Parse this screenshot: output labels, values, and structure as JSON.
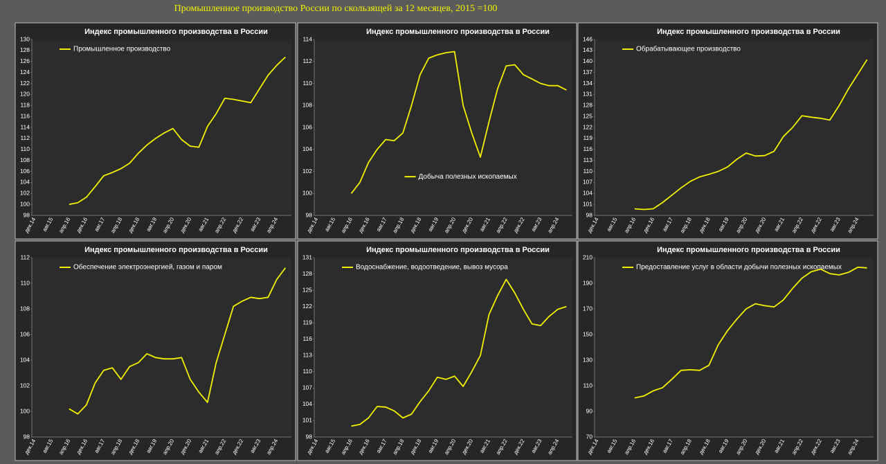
{
  "title": "Промышленное производство России по скользящей за 12 месяцев, 2015 =100",
  "chart_data": [
    {
      "type": "line",
      "title": "Индекс промышленного производства в России",
      "categories": [
        "дек.14",
        null,
        "авг.15",
        null,
        "апр.16",
        null,
        "дек.16",
        null,
        "авг.17",
        null,
        "апр.18",
        null,
        "дек.18",
        null,
        "авг.19",
        null,
        "апр.20",
        null,
        "дек.20",
        null,
        "авг.21",
        null,
        "апр.22",
        null,
        "дек.22",
        null,
        "авг.23",
        null,
        "апр.24",
        null
      ],
      "series": [
        {
          "name": "Промышленное производство",
          "color": "#f2f200",
          "values": [
            null,
            null,
            null,
            null,
            100,
            100.3,
            101.3,
            103.2,
            105.2,
            105.8,
            106.5,
            107.5,
            109.3,
            110.8,
            112,
            113,
            113.8,
            111.8,
            110.6,
            110.4,
            114.2,
            116.5,
            119.3,
            119.1,
            118.8,
            118.5,
            121,
            123.5,
            125.3,
            126.8
          ]
        }
      ],
      "ylim": [
        98,
        130
      ],
      "yticks": [
        98,
        100,
        102,
        104,
        106,
        108,
        110,
        112,
        114,
        116,
        118,
        120,
        122,
        124,
        126,
        128,
        130
      ],
      "grid": false,
      "legend": "upper left"
    },
    {
      "type": "line",
      "title": "Индекс промышленного производства в России",
      "categories": [
        "дек.14",
        null,
        "авг.15",
        null,
        "апр.16",
        null,
        "дек.16",
        null,
        "авг.17",
        null,
        "апр.18",
        null,
        "дек.18",
        null,
        "авг.19",
        null,
        "апр.20",
        null,
        "дек.20",
        null,
        "авг.21",
        null,
        "апр.22",
        null,
        "дек.22",
        null,
        "авг.23",
        null,
        "апр.24",
        null
      ],
      "series": [
        {
          "name": "Добыча полезных ископаемых",
          "color": "#f2f200",
          "values": [
            null,
            null,
            null,
            null,
            100,
            101,
            102.8,
            104,
            104.9,
            104.8,
            105.5,
            108,
            110.8,
            112.3,
            112.6,
            112.8,
            112.9,
            108,
            105.5,
            103.3,
            106.5,
            109.5,
            111.6,
            111.7,
            110.8,
            110.4,
            110,
            109.8,
            109.8,
            109.4
          ]
        }
      ],
      "ylim": [
        98,
        114
      ],
      "yticks": [
        98,
        100,
        102,
        104,
        106,
        108,
        110,
        112,
        114
      ],
      "grid": false,
      "legend": "center"
    },
    {
      "type": "line",
      "title": "Индекс промышленного производства в России",
      "categories": [
        "дек.14",
        null,
        "авг.15",
        null,
        "апр.16",
        null,
        "дек.16",
        null,
        "авг.17",
        null,
        "апр.18",
        null,
        "дек.18",
        null,
        "авг.19",
        null,
        "апр.20",
        null,
        "дек.20",
        null,
        "авг.21",
        null,
        "апр.22",
        null,
        "дек.22",
        null,
        "авг.23",
        null,
        "апр.24",
        null
      ],
      "series": [
        {
          "name": "Обрабатывающее производство",
          "color": "#f2f200",
          "values": [
            null,
            null,
            null,
            null,
            99.8,
            99.6,
            99.8,
            101.5,
            103.5,
            105.5,
            107.3,
            108.5,
            109.2,
            110,
            111.2,
            113.3,
            115,
            114.2,
            114.3,
            115.5,
            119.5,
            122,
            125.2,
            124.8,
            124.5,
            124,
            128,
            132.5,
            136.5,
            140.5
          ]
        }
      ],
      "ylim": [
        98,
        146
      ],
      "yticks": [
        98,
        101,
        104,
        107,
        110,
        113,
        116,
        119,
        122,
        125,
        128,
        131,
        134,
        137,
        140,
        143,
        146
      ],
      "grid": false,
      "legend": "upper left"
    },
    {
      "type": "line",
      "title": "Индекс промышленного производства в России",
      "categories": [
        "дек.14",
        null,
        "авг.15",
        null,
        "апр.16",
        null,
        "дек.16",
        null,
        "авг.17",
        null,
        "апр.18",
        null,
        "дек.18",
        null,
        "авг.19",
        null,
        "апр.20",
        null,
        "дек.20",
        null,
        "авг.21",
        null,
        "апр.22",
        null,
        "дек.22",
        null,
        "авг.23",
        null,
        "апр.24",
        null
      ],
      "series": [
        {
          "name": "Обеспечение электроэнергией, газом и паром",
          "color": "#f2f200",
          "values": [
            null,
            null,
            null,
            null,
            100.2,
            99.8,
            100.5,
            102.2,
            103.2,
            103.4,
            102.5,
            103.5,
            103.8,
            104.5,
            104.2,
            104.1,
            104.1,
            104.2,
            102.5,
            101.5,
            100.7,
            103.8,
            106,
            108.2,
            108.6,
            108.9,
            108.8,
            108.9,
            110.3,
            111.2
          ]
        }
      ],
      "ylim": [
        98,
        112
      ],
      "yticks": [
        98,
        100,
        102,
        104,
        106,
        108,
        110,
        112
      ],
      "grid": false,
      "legend": "upper left"
    },
    {
      "type": "line",
      "title": "Индекс промышленного производства в России",
      "categories": [
        "дек.14",
        null,
        "авг.15",
        null,
        "апр.16",
        null,
        "дек.16",
        null,
        "авг.17",
        null,
        "апр.18",
        null,
        "дек.18",
        null,
        "авг.19",
        null,
        "апр.20",
        null,
        "дек.20",
        null,
        "авг.21",
        null,
        "апр.22",
        null,
        "дек.22",
        null,
        "авг.23",
        null,
        "апр.24",
        null
      ],
      "series": [
        {
          "name": "Водоснабжение, водоотведение, вывоз мусора",
          "color": "#f2f200",
          "values": [
            null,
            null,
            null,
            null,
            100,
            100.3,
            101.5,
            103.6,
            103.5,
            102.8,
            101.5,
            102.2,
            104.5,
            106.5,
            109,
            108.6,
            109.2,
            107.3,
            110,
            113,
            120.5,
            124,
            127,
            124.5,
            121.5,
            118.8,
            118.5,
            120.2,
            121.5,
            122
          ]
        }
      ],
      "ylim": [
        98,
        131
      ],
      "yticks": [
        98,
        101,
        104,
        107,
        110,
        113,
        116,
        119,
        122,
        125,
        128,
        131
      ],
      "grid": false,
      "legend": "upper left"
    },
    {
      "type": "line",
      "title": "Индекс промышленного производства в России",
      "categories": [
        "дек.14",
        null,
        "авг.15",
        null,
        "апр.16",
        null,
        "дек.16",
        null,
        "авг.17",
        null,
        "апр.18",
        null,
        "дек.18",
        null,
        "авг.19",
        null,
        "апр.20",
        null,
        "дек.20",
        null,
        "авг.21",
        null,
        "апр.22",
        null,
        "дек.22",
        null,
        "авг.23",
        null,
        "апр.24",
        null
      ],
      "series": [
        {
          "name": "Предоставление услуг в области добычи полезных ископаемых",
          "color": "#f2f200",
          "values": [
            null,
            null,
            null,
            null,
            100.5,
            102,
            106,
            108.5,
            115,
            122,
            122.5,
            122,
            126,
            142,
            153,
            162,
            170,
            174,
            172.5,
            171.5,
            177,
            186,
            194,
            199,
            201,
            197.5,
            196.5,
            198.5,
            202.5,
            202
          ]
        }
      ],
      "ylim": [
        70,
        210
      ],
      "yticks": [
        70,
        90,
        110,
        130,
        150,
        170,
        190,
        210
      ],
      "grid": false,
      "legend": "upper left"
    }
  ]
}
